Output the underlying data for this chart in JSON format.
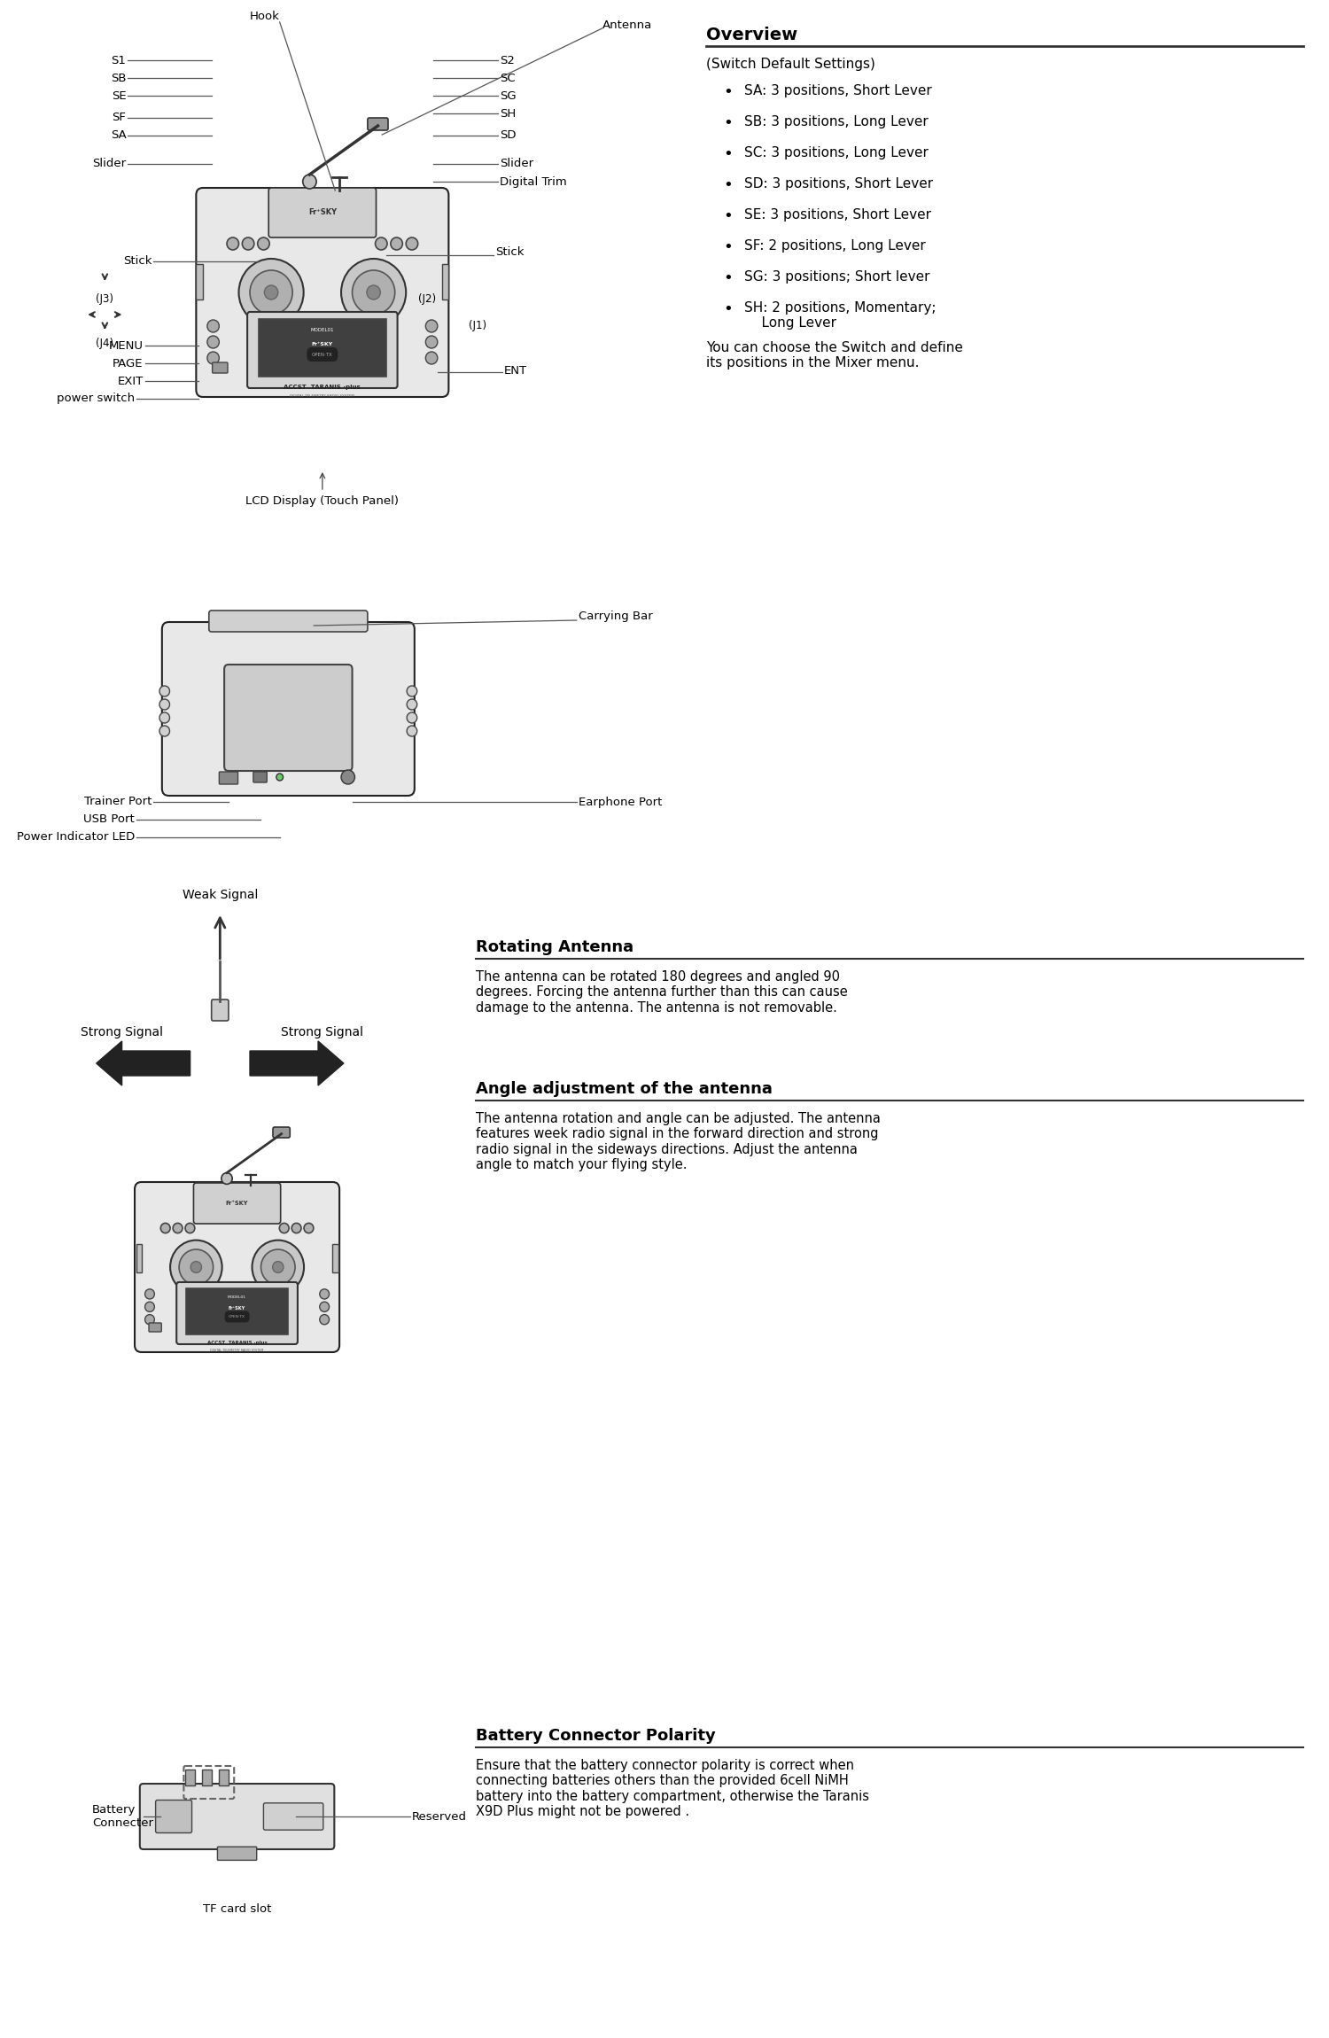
{
  "bg_color": "#ffffff",
  "overview_title": "Overview",
  "overview_subtitle": "(Switch Default Settings)",
  "overview_bullets": [
    "SA: 3 positions, Short Lever",
    "SB: 3 positions, Long Lever",
    "SC: 3 positions, Long Lever",
    "SD: 3 positions, Short Lever",
    "SE: 3 positions, Short Lever",
    "SF: 2 positions, Long Lever",
    "SG: 3 positions; Short lever",
    "SH: 2 positions, Momentary;\n    Long Lever"
  ],
  "overview_footer": "You can choose the Switch and define\nits positions in the Mixer menu.",
  "section2_labels_left": [
    "Trainer Port",
    "USB Port",
    "Power Indicator LED"
  ],
  "section2_labels_right": [
    "Carrying Bar",
    "Earphone Port"
  ],
  "rotating_antenna_title": "Rotating Antenna",
  "rotating_antenna_text": "The antenna can be rotated 180 degrees and angled 90\ndegrees. Forcing the antenna further than this can cause\ndamage to the antenna. The antenna is not removable.",
  "angle_adj_title": "Angle adjustment of the antenna",
  "angle_adj_text": "The antenna rotation and angle can be adjusted. The antenna\nfeatures week radio signal in the forward direction and strong\nradio signal in the sideways directions. Adjust the antenna\nangle to match your flying style.",
  "battery_title": "Battery Connector Polarity",
  "battery_text": "Ensure that the battery connector polarity is correct when\nconnecting batteries others than the provided 6cell NiMH\nbattery into the battery compartment, otherwise the Taranis\nX9D Plus might not be powered .",
  "weak_signal_label": "Weak Signal",
  "strong_signal_label_left": "Strong Signal",
  "strong_signal_label_right": "Strong Signal",
  "battery_connector_label": "Battery\nConnecter",
  "reserved_label": "Reserved",
  "tf_card_label": "TF card slot",
  "hook_label": "Hook",
  "antenna_label": "Antenna",
  "lcd_label": "LCD Display (Touch Panel)"
}
